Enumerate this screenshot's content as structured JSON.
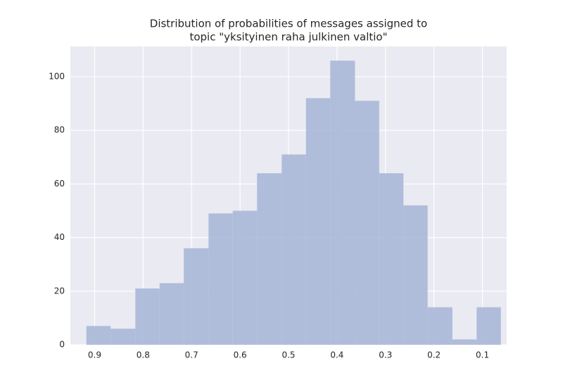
{
  "chart_data": {
    "type": "histogram",
    "title": [
      "Distribution of probabilities of messages assigned to",
      "topic \"yksityinen raha julkinen valtio\""
    ],
    "bins": [
      0.917,
      0.867,
      0.816,
      0.766,
      0.716,
      0.665,
      0.615,
      0.565,
      0.514,
      0.464,
      0.414,
      0.363,
      0.313,
      0.263,
      0.213,
      0.162,
      0.112,
      0.062
    ],
    "values": [
      7,
      6,
      21,
      23,
      36,
      49,
      50,
      64,
      71,
      92,
      106,
      91,
      64,
      52,
      14,
      2,
      14
    ],
    "color": "#a8b8d8",
    "xlim": [
      0.95,
      0.05
    ],
    "xticks": [
      0.9,
      0.8,
      0.7,
      0.6,
      0.5,
      0.4,
      0.3,
      0.2,
      0.1
    ],
    "ylim": [
      0,
      111.3
    ],
    "yticks": [
      0,
      20,
      40,
      60,
      80,
      100
    ],
    "grid": true
  }
}
